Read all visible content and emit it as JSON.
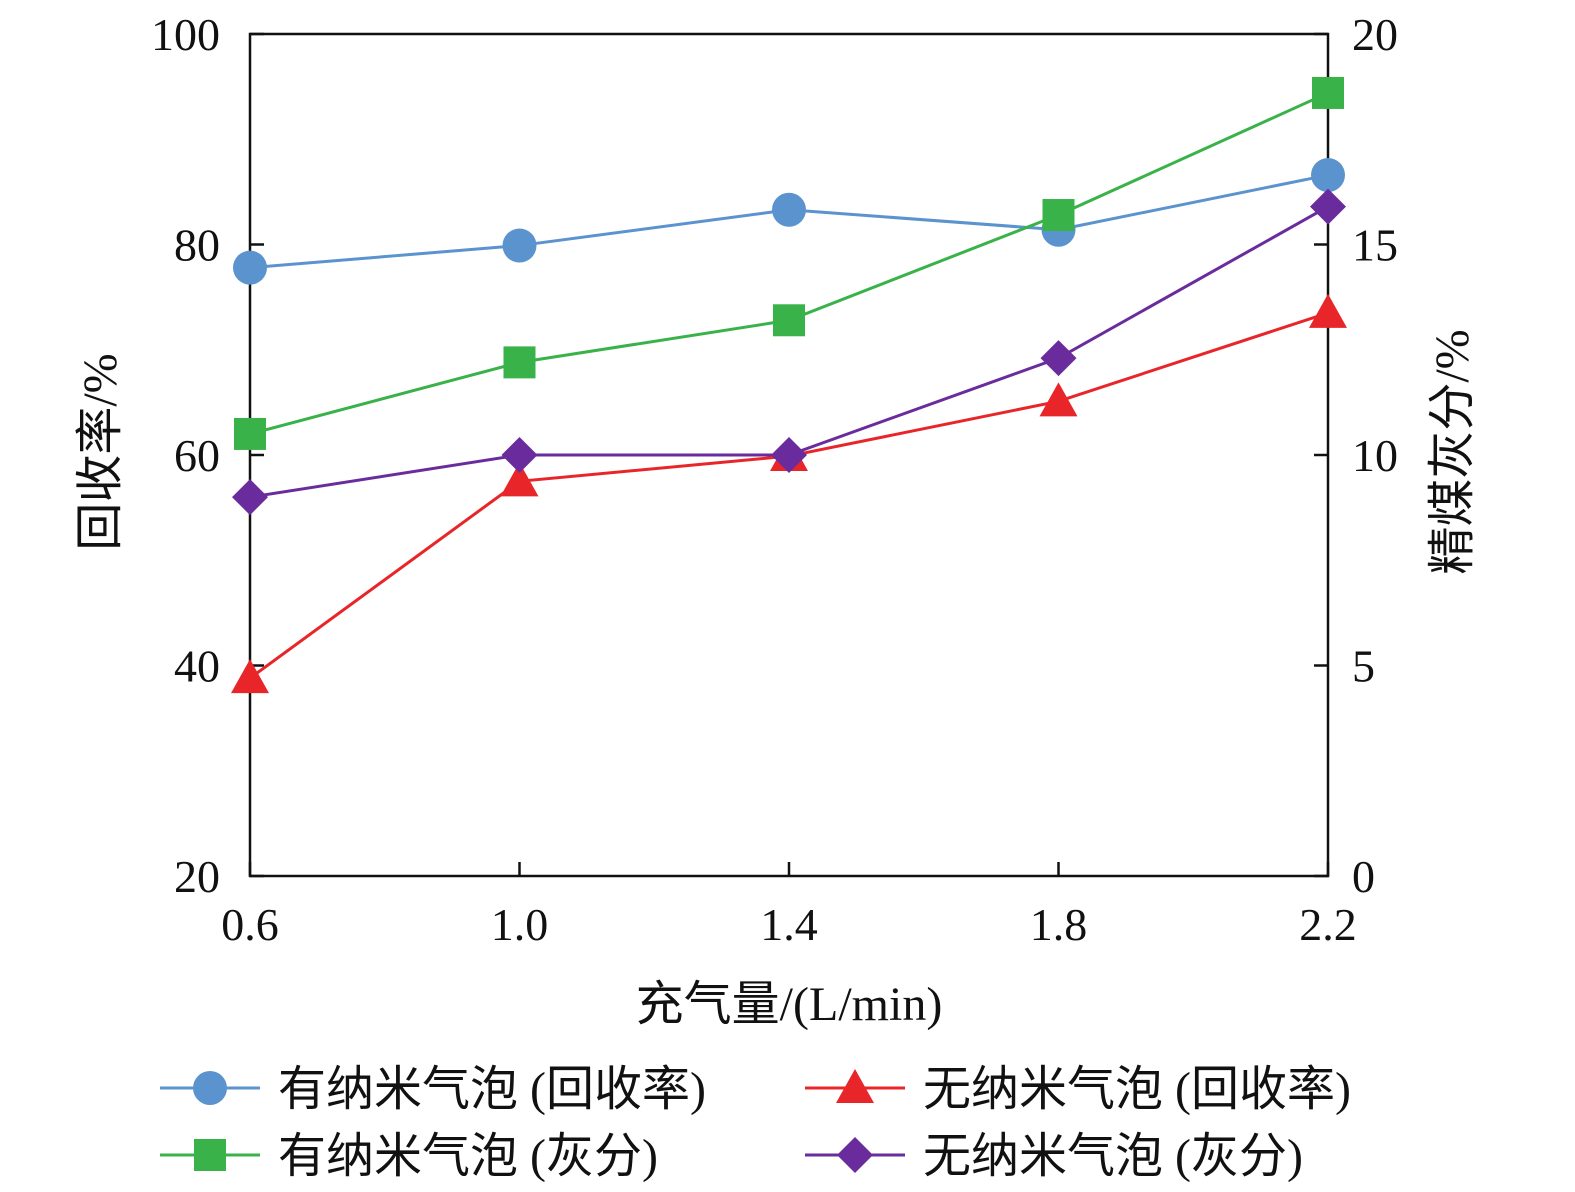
{
  "chart_data": {
    "type": "line",
    "x": [
      0.6,
      1.0,
      1.4,
      1.8,
      2.2
    ],
    "x_tick_labels": [
      "0.6",
      "1.0",
      "1.4",
      "1.8",
      "2.2"
    ],
    "xlabel": "充气量/(L/min)",
    "ylabel_left": "回收率/%",
    "ylabel_right": "精煤灰分/%",
    "ylim_left": [
      20,
      100
    ],
    "ylim_right": [
      0,
      20
    ],
    "left_ticks": [
      "20",
      "40",
      "60",
      "80",
      "100"
    ],
    "left_tick_values": [
      20,
      40,
      60,
      80,
      100
    ],
    "right_ticks": [
      "0",
      "5",
      "10",
      "15",
      "20"
    ],
    "right_tick_values": [
      0,
      5,
      10,
      15,
      20
    ],
    "grid": false,
    "legend_position": "bottom",
    "series": [
      {
        "name": "有纳米气泡 (回收率)",
        "axis": "left",
        "marker": "circle",
        "color": "#5b93cf",
        "values": [
          77.8,
          79.9,
          83.3,
          81.4,
          86.6
        ]
      },
      {
        "name": "无纳米气泡 (回收率)",
        "axis": "left",
        "marker": "triangle",
        "color": "#e8262a",
        "values": [
          38.8,
          57.5,
          59.9,
          65.1,
          73.5
        ]
      },
      {
        "name": "有纳米气泡 (灰分)",
        "axis": "right",
        "marker": "square",
        "color": "#3ab24a",
        "values": [
          10.5,
          12.2,
          13.2,
          15.7,
          18.6
        ]
      },
      {
        "name": "无纳米气泡 (灰分)",
        "axis": "right",
        "marker": "diamond",
        "color": "#6a2c9c",
        "values": [
          9.0,
          10.0,
          10.0,
          12.3,
          15.9
        ]
      }
    ]
  }
}
